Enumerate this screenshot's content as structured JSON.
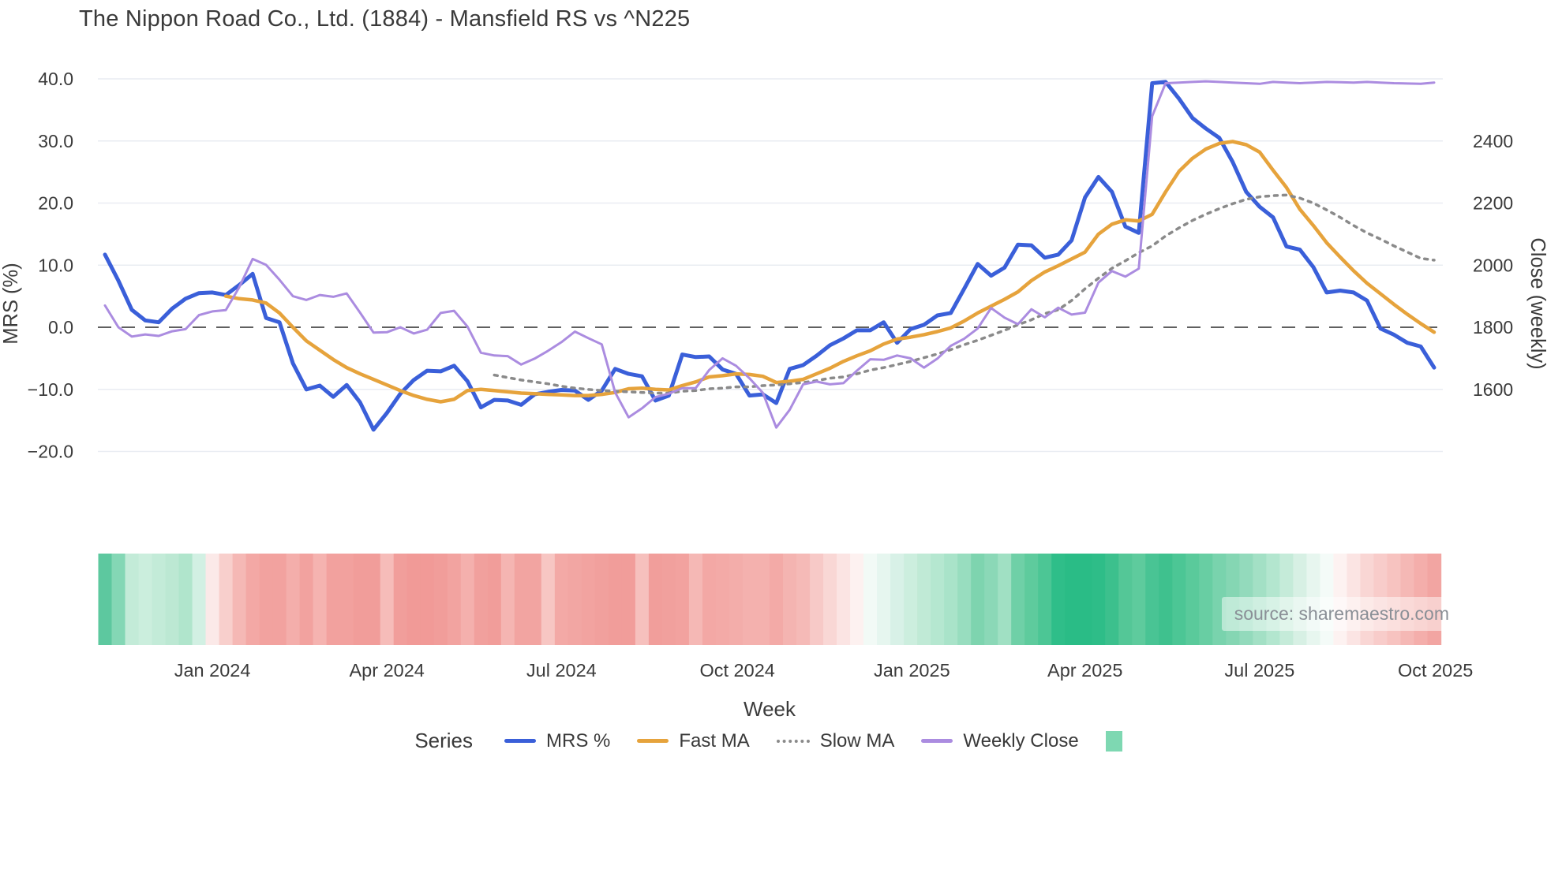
{
  "title": "The Nippon Road Co., Ltd. (1884) - Mansfield RS vs ^N225",
  "source_note": "source: sharemaestro.com",
  "axes": {
    "x_title": "Week",
    "y_left_title": "MRS (%)",
    "y_right_title": "Close (weekly)",
    "x_ticks": [
      {
        "label": "Jan 2024",
        "week": 8
      },
      {
        "label": "Apr 2024",
        "week": 21
      },
      {
        "label": "Jul 2024",
        "week": 34
      },
      {
        "label": "Oct 2024",
        "week": 47.1
      },
      {
        "label": "Jan 2025",
        "week": 60.1
      },
      {
        "label": "Apr 2025",
        "week": 73
      },
      {
        "label": "Jul 2025",
        "week": 86
      },
      {
        "label": "Oct 2025",
        "week": 99.1
      }
    ],
    "y_left_ticks": [
      {
        "label": "40.0",
        "value": 40
      },
      {
        "label": "30.0",
        "value": 30
      },
      {
        "label": "20.0",
        "value": 20
      },
      {
        "label": "10.0",
        "value": 10
      },
      {
        "label": "0.0",
        "value": 0
      },
      {
        "label": "−10.0",
        "value": -10
      },
      {
        "label": "−20.0",
        "value": -20
      }
    ],
    "y_right_ticks": [
      {
        "label": "2400",
        "value": 2400
      },
      {
        "label": "2200",
        "value": 2200
      },
      {
        "label": "2000",
        "value": 2000
      },
      {
        "label": "1800",
        "value": 1800
      },
      {
        "label": "1600",
        "value": 1600
      }
    ]
  },
  "legend": {
    "title": "Series",
    "items": [
      {
        "label": "MRS %",
        "type": "line",
        "color": "#3a5fd9"
      },
      {
        "label": "Fast MA",
        "type": "line",
        "color": "#e6a33c"
      },
      {
        "label": "Slow MA",
        "type": "dotted",
        "color": "#8a8a8a"
      },
      {
        "label": "Weekly Close",
        "type": "line",
        "color": "#ab8ce0"
      },
      {
        "label": "",
        "type": "swatch",
        "color": "#7ed8b2"
      }
    ]
  },
  "chart_data": {
    "type": "line",
    "x_unit": "weekly points, Nov 2023 - Oct 2025",
    "ylim_left": [
      -34.9,
      43.2
    ],
    "ylim_right": [
      1102,
      2664
    ],
    "right_axis_mapping": "close = 1800 + 20 * mrs_axis_value",
    "grid": "horizontal only",
    "zero_line": {
      "value": 0,
      "style": "dashed",
      "color": "#4a4a4a"
    },
    "series": [
      {
        "name": "MRS %",
        "axis": "left",
        "color": "#3a5fd9",
        "width": 5,
        "values": [
          11.7,
          7.5,
          2.8,
          1.1,
          0.8,
          3.0,
          4.6,
          5.5,
          5.6,
          5.2,
          6.8,
          8.6,
          1.5,
          0.8,
          -5.8,
          -10.0,
          -9.4,
          -11.2,
          -9.3,
          -12.1,
          -16.5,
          -13.8,
          -10.7,
          -8.5,
          -7.0,
          -7.1,
          -6.2,
          -8.7,
          -12.9,
          -11.7,
          -11.8,
          -12.5,
          -10.8,
          -10.4,
          -10.1,
          -10.2,
          -11.7,
          -10.2,
          -6.7,
          -7.5,
          -7.9,
          -11.8,
          -11.0,
          -4.4,
          -4.8,
          -4.7,
          -6.8,
          -7.5,
          -11.0,
          -10.8,
          -12.2,
          -6.7,
          -6.1,
          -4.6,
          -2.9,
          -1.8,
          -0.5,
          -0.5,
          0.8,
          -2.5,
          -0.3,
          0.4,
          1.9,
          2.3,
          6.2,
          10.2,
          8.3,
          9.6,
          13.3,
          13.2,
          11.2,
          11.7,
          14.0,
          20.9,
          24.2,
          21.8,
          16.2,
          15.2,
          39.3,
          39.5,
          36.8,
          33.7,
          32.0,
          30.5,
          26.6,
          21.8,
          19.4,
          17.7,
          13.0,
          12.5,
          9.7,
          5.6,
          5.9,
          5.6,
          4.3,
          -0.2,
          -1.2,
          -2.5,
          -3.1,
          -6.5
        ]
      },
      {
        "name": "Fast MA",
        "axis": "left",
        "color": "#e6a33c",
        "width": 4.5,
        "values": [
          null,
          null,
          null,
          null,
          null,
          null,
          null,
          null,
          null,
          5.0,
          4.6,
          4.4,
          3.9,
          2.3,
          0.0,
          -2.2,
          -3.7,
          -5.2,
          -6.5,
          -7.5,
          -8.4,
          -9.3,
          -10.2,
          -11.0,
          -11.6,
          -12.0,
          -11.6,
          -10.2,
          -10.0,
          -10.2,
          -10.4,
          -10.6,
          -10.7,
          -10.8,
          -10.9,
          -11.0,
          -11.0,
          -10.8,
          -10.5,
          -9.9,
          -9.8,
          -10.0,
          -10.1,
          -9.4,
          -8.8,
          -8.0,
          -7.8,
          -7.5,
          -7.6,
          -7.9,
          -8.9,
          -8.7,
          -8.4,
          -7.5,
          -6.6,
          -5.5,
          -4.6,
          -3.8,
          -2.7,
          -1.9,
          -1.6,
          -1.2,
          -0.7,
          -0.1,
          1.0,
          2.3,
          3.4,
          4.5,
          5.7,
          7.5,
          8.9,
          9.9,
          11.0,
          12.1,
          15.0,
          16.6,
          17.3,
          17.1,
          18.2,
          21.8,
          25.1,
          27.2,
          28.7,
          29.6,
          29.9,
          29.4,
          28.2,
          25.3,
          22.5,
          19.0,
          16.4,
          13.6,
          11.3,
          9.1,
          7.1,
          5.4,
          3.7,
          2.1,
          0.6,
          -0.8
        ]
      },
      {
        "name": "Slow MA",
        "axis": "left",
        "color": "#8a8a8a",
        "width": 3.5,
        "dash": "4 7",
        "values": [
          null,
          null,
          null,
          null,
          null,
          null,
          null,
          null,
          null,
          null,
          null,
          null,
          null,
          null,
          null,
          null,
          null,
          null,
          null,
          null,
          null,
          null,
          null,
          null,
          null,
          null,
          null,
          null,
          null,
          -7.7,
          -8.1,
          -8.5,
          -8.8,
          -9.1,
          -9.5,
          -9.8,
          -10.0,
          -10.2,
          -10.3,
          -10.4,
          -10.5,
          -10.6,
          -10.6,
          -10.3,
          -10.2,
          -9.9,
          -9.8,
          -9.6,
          -9.6,
          -9.4,
          -9.3,
          -9.1,
          -8.9,
          -8.6,
          -8.2,
          -8.0,
          -7.5,
          -6.9,
          -6.5,
          -6.0,
          -5.5,
          -4.9,
          -4.3,
          -3.6,
          -2.8,
          -2.1,
          -1.3,
          -0.5,
          0.4,
          1.2,
          2.2,
          2.8,
          4.3,
          6.2,
          7.9,
          9.5,
          10.7,
          12.0,
          13.1,
          14.7,
          16.0,
          17.2,
          18.2,
          19.1,
          19.9,
          20.6,
          21.0,
          21.2,
          21.3,
          20.8,
          20.0,
          18.9,
          17.7,
          16.4,
          15.2,
          14.2,
          13.1,
          12.1,
          11.1,
          10.8
        ]
      },
      {
        "name": "Weekly Close",
        "axis": "right",
        "color": "#ab8ce0",
        "width": 3,
        "values": [
          1870,
          1800,
          1770,
          1777,
          1772,
          1787,
          1794,
          1839,
          1851,
          1855,
          1929,
          2020,
          2001,
          1953,
          1900,
          1888,
          1904,
          1898,
          1909,
          1847,
          1783,
          1784,
          1800,
          1780,
          1792,
          1846,
          1853,
          1802,
          1718,
          1709,
          1707,
          1680,
          1699,
          1724,
          1752,
          1786,
          1765,
          1745,
          1590,
          1510,
          1539,
          1575,
          1586,
          1604,
          1604,
          1662,
          1700,
          1676,
          1636,
          1589,
          1477,
          1534,
          1616,
          1625,
          1616,
          1620,
          1660,
          1697,
          1695,
          1709,
          1700,
          1670,
          1699,
          1740,
          1763,
          1796,
          1862,
          1831,
          1810,
          1858,
          1832,
          1863,
          1841,
          1847,
          1944,
          1981,
          1963,
          1989,
          2480,
          2586,
          2588,
          2590,
          2592,
          2590,
          2588,
          2586,
          2584,
          2590,
          2588,
          2586,
          2588,
          2590,
          2589,
          2588,
          2590,
          2588,
          2586,
          2585,
          2584,
          2588
        ]
      }
    ],
    "heatmap": {
      "description": "weekly strength strip under plot",
      "colors": [
        "#5dc89f",
        "#84d7b5",
        "#c3ebd8",
        "#cbeedd",
        "#c3ebd8",
        "#bce8d3",
        "#b0e5cc",
        "#d2f0e3",
        "#fbe9e8",
        "#f8cfcc",
        "#f5b8b5",
        "#f3a8a5",
        "#f2a29f",
        "#f2a29f",
        "#f4aeab",
        "#f2a29f",
        "#f5b3b0",
        "#f2a19e",
        "#f2a19e",
        "#f19d9a",
        "#f19d9a",
        "#f6bcb9",
        "#f19e9b",
        "#f19a97",
        "#f19a97",
        "#f19d9a",
        "#f2a3a0",
        "#f4b0ad",
        "#f1a09d",
        "#f19d9a",
        "#f5b5b2",
        "#f2a4a1",
        "#f2a4a1",
        "#f7c6c3",
        "#f3a9a6",
        "#f2a6a3",
        "#f2a3a0",
        "#f1a09d",
        "#f19d9a",
        "#f19d9a",
        "#f6c0bd",
        "#f19e9b",
        "#f1a09d",
        "#f2a29f",
        "#f5b8b5",
        "#f3a8a5",
        "#f3aaa7",
        "#f3adaa",
        "#f4b1ae",
        "#f4b1ae",
        "#f3aaa7",
        "#f4b4b1",
        "#f5bab7",
        "#f7c9c7",
        "#f9d7d5",
        "#fbe4e3",
        "#fdf1f0",
        "#f2faf6",
        "#e6f6ef",
        "#d8f1e7",
        "#cceede",
        "#c0ead6",
        "#b5e7d0",
        "#a9e3c9",
        "#98ddbf",
        "#7ed4af",
        "#8bd8b7",
        "#a0e0c3",
        "#6fd0a7",
        "#5ecb9d",
        "#4cc695",
        "#2fbe89",
        "#2abc86",
        "#2abc86",
        "#2ebd88",
        "#3cc08d",
        "#54c797",
        "#5ecb9d",
        "#49c494",
        "#3fc18e",
        "#4cc695",
        "#5aca9b",
        "#68cea3",
        "#79d3ad",
        "#85d6b3",
        "#93dabc",
        "#a3e0c5",
        "#b3e6cf",
        "#c5ebd9",
        "#d7f0e4",
        "#e7f6ef",
        "#f4fbf8",
        "#fdf2f1",
        "#fbe4e3",
        "#f9d6d4",
        "#f8ccca",
        "#f7c3c0",
        "#f5b8b5",
        "#f4aeab",
        "#f2a5a2"
      ]
    }
  },
  "colors": {
    "background": "#ffffff",
    "grid": "#e9ecf2",
    "tick_text": "#3b3b3b",
    "title_text": "#3a3a3a",
    "source_text": "#8a8f96"
  }
}
